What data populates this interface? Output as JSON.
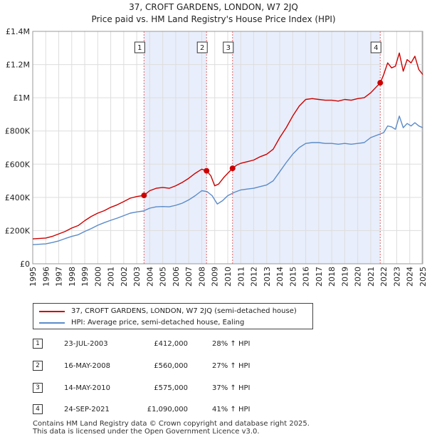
{
  "header": {
    "title_line1": "37, CROFT GARDENS, LONDON, W7 2JQ",
    "title_line2": "Price paid vs. HM Land Registry's House Price Index (HPI)"
  },
  "chart_data": {
    "type": "line",
    "title": "37, CROFT GARDENS, LONDON, W7 2JQ — Price paid vs. HM Land Registry's House Price Index (HPI)",
    "xlabel": "",
    "ylabel": "",
    "xlim": [
      1995,
      2025
    ],
    "ylim": [
      0,
      1400000
    ],
    "x_ticks": [
      1995,
      1996,
      1997,
      1998,
      1999,
      2000,
      2001,
      2002,
      2003,
      2004,
      2005,
      2006,
      2007,
      2008,
      2009,
      2010,
      2011,
      2012,
      2013,
      2014,
      2015,
      2016,
      2017,
      2018,
      2019,
      2020,
      2021,
      2022,
      2023,
      2024,
      2025
    ],
    "y_ticks": [
      {
        "value": 0,
        "label": "£0"
      },
      {
        "value": 200000,
        "label": "£200K"
      },
      {
        "value": 400000,
        "label": "£400K"
      },
      {
        "value": 600000,
        "label": "£600K"
      },
      {
        "value": 800000,
        "label": "£800K"
      },
      {
        "value": 1000000,
        "label": "£1M"
      },
      {
        "value": 1200000,
        "label": "£1.2M"
      },
      {
        "value": 1400000,
        "label": "£1.4M"
      }
    ],
    "grid": true,
    "colors": {
      "property": "#cc0000",
      "hpi": "#5b8bc8",
      "shade": "#e8eefb",
      "marker_line": "#e06666"
    },
    "shaded_ranges": [
      [
        2003.56,
        2008.37
      ],
      [
        2010.37,
        2021.73
      ]
    ],
    "series": [
      {
        "name": "37, CROFT GARDENS, LONDON, W7 2JQ (semi-detached house)",
        "color": "#cc0000",
        "x": [
          1995.0,
          1996.0,
          1996.5,
          1997.0,
          1997.5,
          1998.0,
          1998.5,
          1999.0,
          1999.5,
          2000.0,
          2000.5,
          2001.0,
          2001.5,
          2002.0,
          2002.5,
          2003.0,
          2003.56,
          2004.0,
          2004.5,
          2005.0,
          2005.5,
          2006.0,
          2006.5,
          2007.0,
          2007.5,
          2008.0,
          2008.37,
          2008.7,
          2009.0,
          2009.3,
          2009.7,
          2010.0,
          2010.37,
          2010.7,
          2011.0,
          2011.5,
          2012.0,
          2012.5,
          2013.0,
          2013.5,
          2014.0,
          2014.5,
          2015.0,
          2015.5,
          2016.0,
          2016.5,
          2017.0,
          2017.5,
          2018.0,
          2018.5,
          2019.0,
          2019.5,
          2020.0,
          2020.5,
          2021.0,
          2021.73,
          2022.0,
          2022.3,
          2022.6,
          2022.9,
          2023.2,
          2023.5,
          2023.8,
          2024.1,
          2024.4,
          2024.7,
          2025.0
        ],
        "values": [
          150000,
          155000,
          165000,
          180000,
          195000,
          215000,
          230000,
          260000,
          285000,
          305000,
          320000,
          340000,
          355000,
          375000,
          395000,
          405000,
          412000,
          440000,
          455000,
          460000,
          455000,
          470000,
          490000,
          515000,
          545000,
          570000,
          560000,
          530000,
          470000,
          480000,
          520000,
          545000,
          575000,
          595000,
          605000,
          615000,
          625000,
          645000,
          660000,
          690000,
          760000,
          820000,
          890000,
          950000,
          990000,
          995000,
          990000,
          985000,
          985000,
          980000,
          990000,
          985000,
          995000,
          1000000,
          1030000,
          1090000,
          1140000,
          1210000,
          1180000,
          1190000,
          1270000,
          1160000,
          1230000,
          1210000,
          1250000,
          1170000,
          1140000
        ]
      },
      {
        "name": "HPI: Average price, semi-detached house, Ealing",
        "color": "#5b8bc8",
        "x": [
          1995.0,
          1996.0,
          1996.5,
          1997.0,
          1997.5,
          1998.0,
          1998.5,
          1999.0,
          1999.5,
          2000.0,
          2000.5,
          2001.0,
          2001.5,
          2002.0,
          2002.5,
          2003.0,
          2003.5,
          2004.0,
          2004.5,
          2005.0,
          2005.5,
          2006.0,
          2006.5,
          2007.0,
          2007.5,
          2008.0,
          2008.4,
          2008.8,
          2009.2,
          2009.6,
          2010.0,
          2010.5,
          2011.0,
          2011.5,
          2012.0,
          2012.5,
          2013.0,
          2013.5,
          2014.0,
          2014.5,
          2015.0,
          2015.5,
          2016.0,
          2016.5,
          2017.0,
          2017.5,
          2018.0,
          2018.5,
          2019.0,
          2019.5,
          2020.0,
          2020.5,
          2021.0,
          2021.5,
          2022.0,
          2022.3,
          2022.6,
          2022.9,
          2023.2,
          2023.5,
          2023.8,
          2024.1,
          2024.4,
          2024.7,
          2025.0
        ],
        "values": [
          115000,
          120000,
          128000,
          138000,
          152000,
          165000,
          175000,
          195000,
          212000,
          232000,
          248000,
          262000,
          275000,
          290000,
          305000,
          312000,
          318000,
          335000,
          343000,
          345000,
          343000,
          352000,
          365000,
          385000,
          410000,
          440000,
          435000,
          410000,
          360000,
          380000,
          410000,
          430000,
          445000,
          450000,
          455000,
          465000,
          475000,
          500000,
          555000,
          610000,
          660000,
          700000,
          725000,
          730000,
          730000,
          725000,
          725000,
          720000,
          725000,
          720000,
          725000,
          730000,
          760000,
          775000,
          790000,
          830000,
          825000,
          810000,
          890000,
          820000,
          845000,
          830000,
          850000,
          830000,
          820000
        ]
      }
    ],
    "sales": [
      {
        "label": "1",
        "x": 2003.56,
        "value": 412000
      },
      {
        "label": "2",
        "x": 2008.37,
        "value": 560000
      },
      {
        "label": "3",
        "x": 2010.37,
        "value": 575000
      },
      {
        "label": "4",
        "x": 2021.73,
        "value": 1090000
      }
    ]
  },
  "legend": {
    "property_label": "37, CROFT GARDENS, LONDON, W7 2JQ (semi-detached house)",
    "hpi_label": "HPI: Average price, semi-detached house, Ealing"
  },
  "table": {
    "rows": [
      {
        "num": "1",
        "date": "23-JUL-2003",
        "price": "£412,000",
        "hpi": "28% ↑ HPI"
      },
      {
        "num": "2",
        "date": "16-MAY-2008",
        "price": "£560,000",
        "hpi": "27% ↑ HPI"
      },
      {
        "num": "3",
        "date": "14-MAY-2010",
        "price": "£575,000",
        "hpi": "37% ↑ HPI"
      },
      {
        "num": "4",
        "date": "24-SEP-2021",
        "price": "£1,090,000",
        "hpi": "41% ↑ HPI"
      }
    ]
  },
  "footer": {
    "line1": "Contains HM Land Registry data © Crown copyright and database right 2025.",
    "line2": "This data is licensed under the Open Government Licence v3.0."
  }
}
